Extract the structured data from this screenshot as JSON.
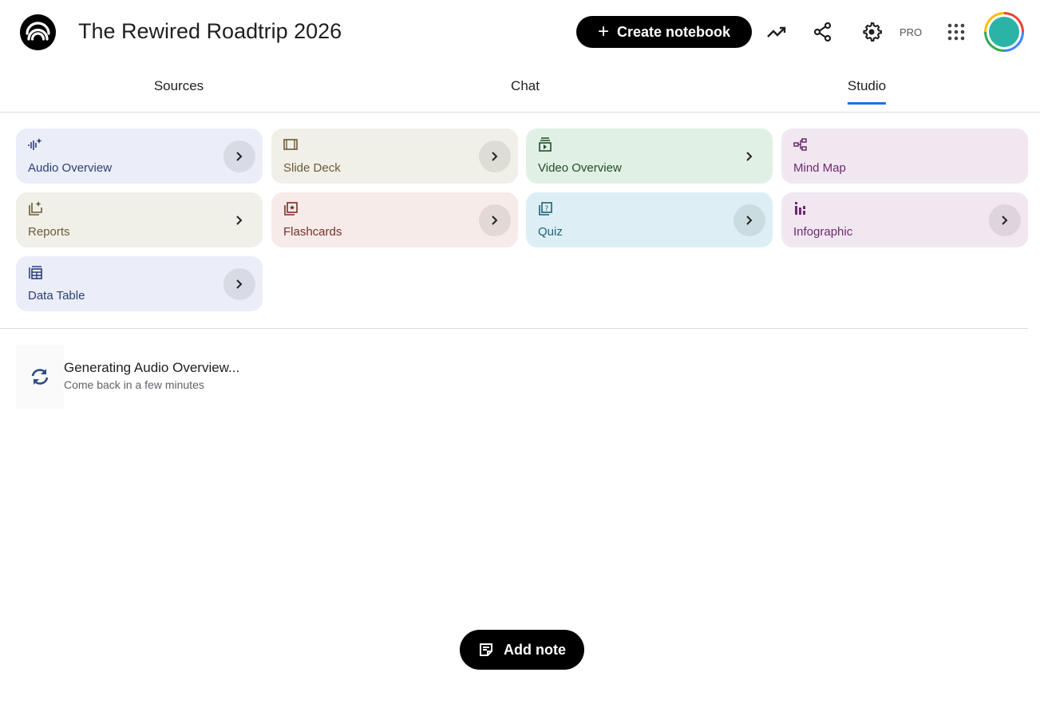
{
  "header": {
    "title": "The Rewired Roadtrip 2026",
    "create_label": "Create notebook",
    "pro_label": "PRO"
  },
  "tabs": [
    {
      "label": "Sources"
    },
    {
      "label": "Chat"
    },
    {
      "label": "Studio",
      "active": true
    }
  ],
  "studio": {
    "cards": [
      {
        "label": "Audio Overview",
        "icon": "waveform-sparkle-icon",
        "bg": "#ebeef9",
        "fg": "#2c3e75"
      },
      {
        "label": "Slide Deck",
        "icon": "slides-icon",
        "bg": "#f1f0e8",
        "fg": "#6b5a3a"
      },
      {
        "label": "Video Overview",
        "icon": "video-play-icon",
        "bg": "#e1f0e4",
        "fg": "#1f4d2a"
      },
      {
        "label": "Mind Map",
        "icon": "mind-map-icon",
        "bg": "#f1e7f1",
        "fg": "#6e2a6e"
      },
      {
        "label": "Reports",
        "icon": "report-sparkle-icon",
        "bg": "#f1f0e8",
        "fg": "#6b5a3a"
      },
      {
        "label": "Flashcards",
        "icon": "flashcards-icon",
        "bg": "#f6ebe8",
        "fg": "#7a2e2a"
      },
      {
        "label": "Quiz",
        "icon": "quiz-icon",
        "bg": "#ddeff5",
        "fg": "#215f7a"
      },
      {
        "label": "Infographic",
        "icon": "infographic-icon",
        "bg": "#f1e7f1",
        "fg": "#6e2a6e"
      },
      {
        "label": "Data Table",
        "icon": "data-table-icon",
        "bg": "#ebeef9",
        "fg": "#2c3e75"
      }
    ],
    "generating": {
      "title": "Generating Audio Overview...",
      "subtitle": "Come back in a few minutes"
    }
  },
  "footer": {
    "add_note_label": "Add note"
  }
}
